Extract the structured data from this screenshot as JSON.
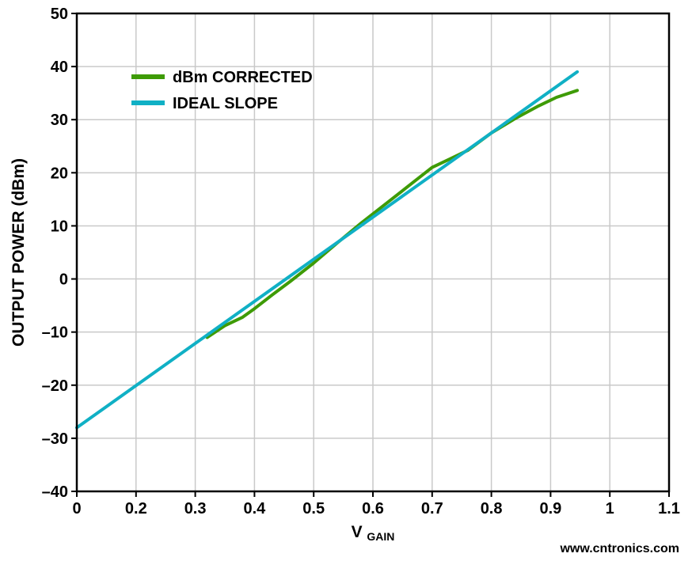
{
  "watermark": {
    "text": "www.cntronics.com",
    "color": "#8dd5a6"
  },
  "chart_data": {
    "type": "line",
    "title": "",
    "xlabel": "V",
    "xlabel_sub": "GAIN",
    "ylabel": "OUTPUT POWER (dBm)",
    "x_ticks": [
      0,
      0.2,
      0.3,
      0.4,
      0.5,
      0.6,
      0.7,
      0.8,
      0.9,
      1,
      1.1
    ],
    "x_tick_labels": [
      "0",
      "0.2",
      "0.3",
      "0.4",
      "0.5",
      "0.6",
      "0.7",
      "0.8",
      "0.9",
      "1",
      "1.1"
    ],
    "y_ticks": [
      50,
      40,
      30,
      20,
      10,
      0,
      -10,
      -20,
      -30,
      -40
    ],
    "ylim": [
      -40,
      50
    ],
    "xlim_note": "ticks evenly spaced as printed on original axis",
    "grid": true,
    "legend_position": "top-left",
    "axis_color": "#000000",
    "grid_color": "#c9c9c9",
    "series": [
      {
        "name": "dBm CORRECTED",
        "color": "#3e9b06",
        "points": [
          [
            0.32,
            -11
          ],
          [
            0.35,
            -8.8
          ],
          [
            0.38,
            -7.2
          ],
          [
            0.4,
            -5.6
          ],
          [
            0.43,
            -3
          ],
          [
            0.46,
            -0.5
          ],
          [
            0.5,
            3
          ],
          [
            0.54,
            6.8
          ],
          [
            0.58,
            10.5
          ],
          [
            0.62,
            14
          ],
          [
            0.66,
            17.5
          ],
          [
            0.7,
            21
          ],
          [
            0.73,
            22.6
          ],
          [
            0.76,
            24.2
          ],
          [
            0.8,
            27.5
          ],
          [
            0.84,
            30.2
          ],
          [
            0.88,
            32.6
          ],
          [
            0.91,
            34.2
          ],
          [
            0.945,
            35.5
          ]
        ]
      },
      {
        "name": "IDEAL SLOPE",
        "color": "#10b0c5",
        "points": [
          [
            0,
            -28
          ],
          [
            0.945,
            39
          ]
        ]
      }
    ]
  }
}
